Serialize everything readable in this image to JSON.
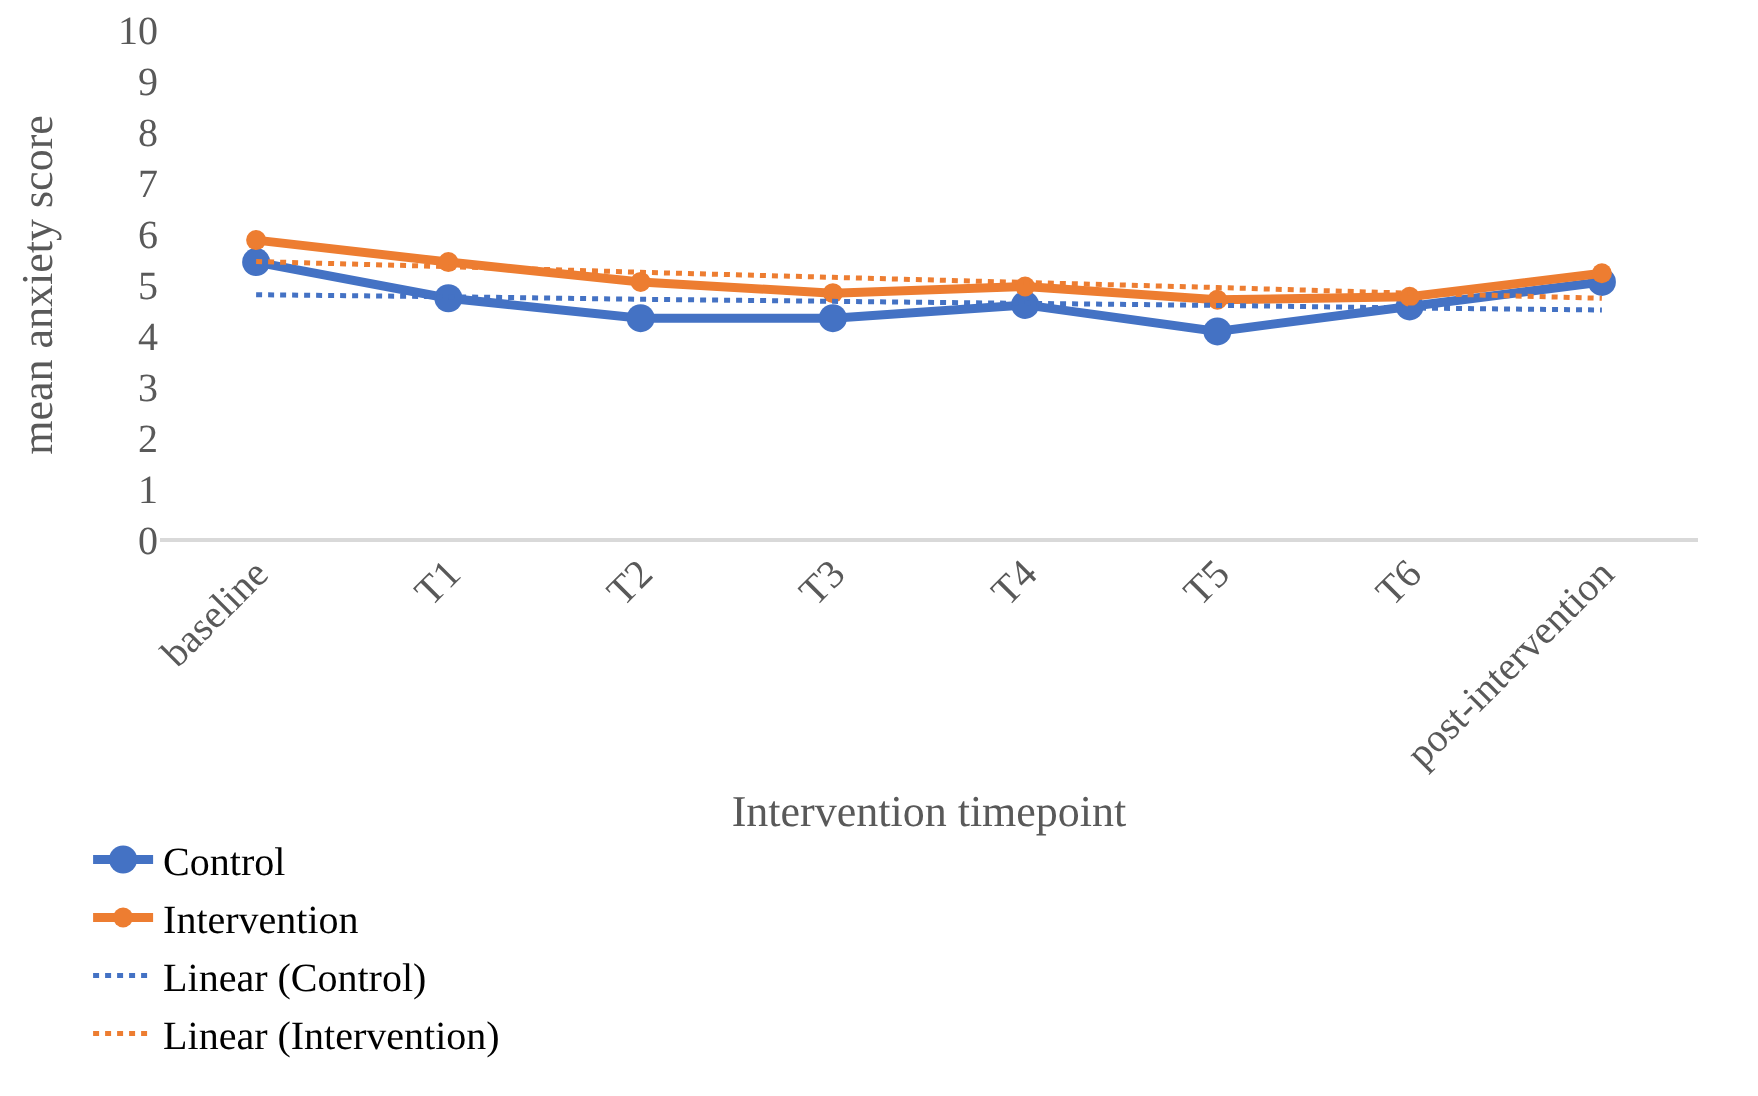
{
  "chart_data": {
    "type": "line",
    "xlabel": "Intervention timepoint",
    "ylabel": "mean anxiety score",
    "categories": [
      "baseline",
      "T1",
      "T2",
      "T3",
      "T4",
      "T5",
      "T6",
      "post-intervention"
    ],
    "series": [
      {
        "name": "Control",
        "color": "#4472c4",
        "marker": "circle",
        "line_style": "solid",
        "values": [
          5.45,
          4.74,
          4.35,
          4.35,
          4.61,
          4.09,
          4.58,
          5.06
        ]
      },
      {
        "name": "Intervention",
        "color": "#ed7d31",
        "marker": "circle",
        "line_style": "solid",
        "values": [
          5.88,
          5.45,
          5.06,
          4.84,
          4.97,
          4.71,
          4.77,
          5.23
        ]
      },
      {
        "name": "Linear (Control)",
        "color": "#4472c4",
        "marker": "none",
        "line_style": "dotted",
        "values": [
          4.81,
          4.77,
          4.72,
          4.68,
          4.64,
          4.6,
          4.55,
          4.51
        ]
      },
      {
        "name": "Linear (Intervention)",
        "color": "#ed7d31",
        "marker": "none",
        "line_style": "dotted",
        "values": [
          5.46,
          5.36,
          5.25,
          5.15,
          5.05,
          4.95,
          4.84,
          4.74
        ]
      }
    ],
    "ylim": [
      0,
      10
    ],
    "yticks": [
      0,
      1,
      2,
      3,
      4,
      5,
      6,
      7,
      8,
      9,
      10
    ],
    "grid": false,
    "legend": "bottom"
  }
}
